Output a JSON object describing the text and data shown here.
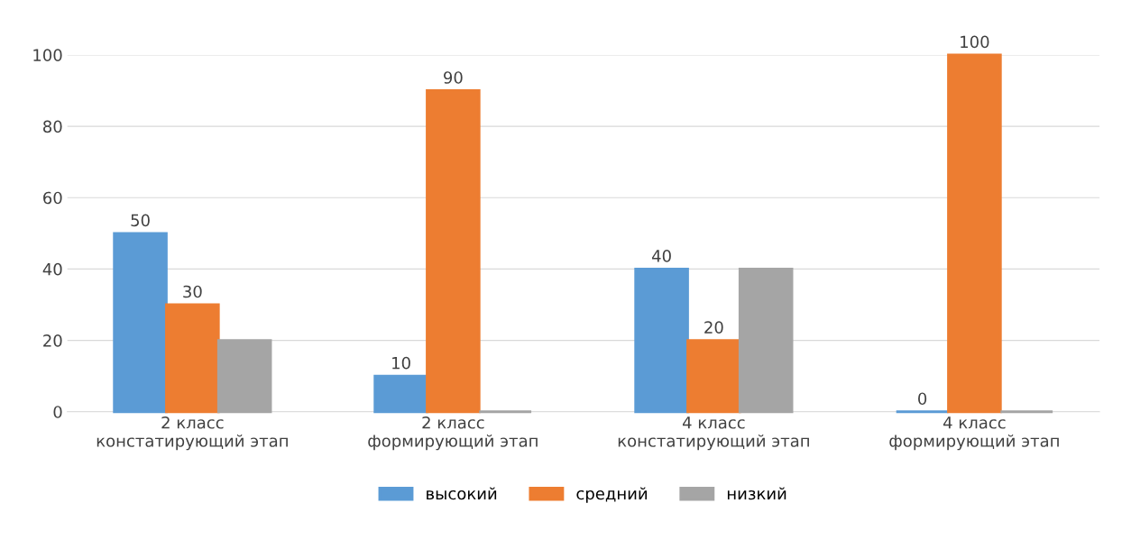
{
  "chart_data": {
    "type": "bar",
    "categories": [
      "2 класс\nконстатирующий этап",
      "2 класс\nформирующий этап",
      "4 класс\nконстатирующий этап",
      "4 класс\nформирующий этап"
    ],
    "series": [
      {
        "name": "высокий",
        "color": "#5b9bd5",
        "values": [
          50,
          10,
          40,
          0
        ],
        "value_labels": [
          "50",
          "10",
          "40",
          "0"
        ]
      },
      {
        "name": "средний",
        "color": "#ed7d31",
        "values": [
          30,
          90,
          20,
          100
        ],
        "value_labels": [
          "30",
          "90",
          "20",
          "100"
        ]
      },
      {
        "name": "низкий",
        "color": "#a5a5a5",
        "values": [
          20,
          0,
          40,
          0
        ]
      }
    ],
    "ylim": [
      0,
      100
    ],
    "yticks": [
      0,
      20,
      40,
      60,
      80,
      100
    ],
    "grid": "y",
    "legend": "bottom"
  }
}
